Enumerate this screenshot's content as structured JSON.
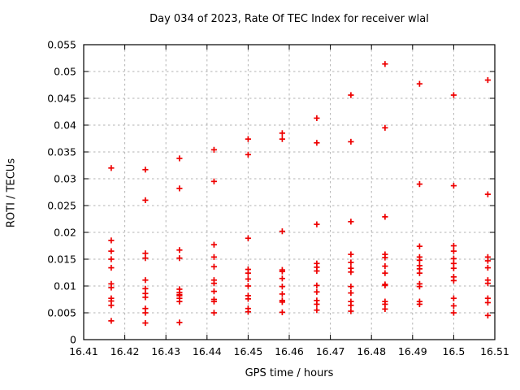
{
  "chart_data": {
    "type": "scatter",
    "title": "Day 034 of 2023, Rate Of TEC Index for receiver wlal",
    "xlabel": "GPS time / hours",
    "ylabel": "ROTI / TECUs",
    "xlim": [
      16.41,
      16.51
    ],
    "ylim": [
      0,
      0.055
    ],
    "grid": true,
    "legend": "none",
    "marker_style": "plus",
    "marker_color": "#ee0000",
    "grid_color": "#b3b3b3",
    "frame_color": "#000000",
    "text_color": "#000000",
    "x_tick_values": [
      16.41,
      16.42,
      16.43,
      16.44,
      16.45,
      16.46,
      16.47,
      16.48,
      16.49,
      16.5,
      16.51
    ],
    "x_tick_labels": [
      "16.41",
      "16.42",
      "16.43",
      "16.44",
      "16.45",
      "16.46",
      "16.47",
      "16.48",
      "16.49",
      "16.5",
      "16.51"
    ],
    "y_tick_values": [
      0,
      0.005,
      0.01,
      0.015,
      0.02,
      0.025,
      0.03,
      0.035,
      0.04,
      0.045,
      0.05,
      0.055
    ],
    "y_tick_labels": [
      "0",
      "0.005",
      "0.01",
      "0.015",
      "0.02",
      "0.025",
      "0.03",
      "0.035",
      "0.04",
      "0.045",
      "0.05",
      "0.055"
    ],
    "series": [
      {
        "name": "ROTI",
        "points": [
          [
            16.4167,
            0.032
          ],
          [
            16.4167,
            0.0185
          ],
          [
            16.4167,
            0.0165
          ],
          [
            16.4167,
            0.015
          ],
          [
            16.4167,
            0.0134
          ],
          [
            16.4167,
            0.0104
          ],
          [
            16.4167,
            0.0097
          ],
          [
            16.4167,
            0.0077
          ],
          [
            16.4167,
            0.0072
          ],
          [
            16.4167,
            0.0064
          ],
          [
            16.4167,
            0.0035
          ],
          [
            16.425,
            0.0317
          ],
          [
            16.425,
            0.026
          ],
          [
            16.425,
            0.0161
          ],
          [
            16.425,
            0.0152
          ],
          [
            16.425,
            0.0111
          ],
          [
            16.425,
            0.0095
          ],
          [
            16.425,
            0.0086
          ],
          [
            16.425,
            0.0079
          ],
          [
            16.425,
            0.0058
          ],
          [
            16.425,
            0.005
          ],
          [
            16.425,
            0.0031
          ],
          [
            16.4333,
            0.0338
          ],
          [
            16.4333,
            0.0282
          ],
          [
            16.4333,
            0.0167
          ],
          [
            16.4333,
            0.0152
          ],
          [
            16.4333,
            0.0094
          ],
          [
            16.4333,
            0.0088
          ],
          [
            16.4333,
            0.0084
          ],
          [
            16.4333,
            0.0082
          ],
          [
            16.4333,
            0.0077
          ],
          [
            16.4333,
            0.0071
          ],
          [
            16.4333,
            0.0032
          ],
          [
            16.4417,
            0.0354
          ],
          [
            16.4417,
            0.0295
          ],
          [
            16.4417,
            0.0177
          ],
          [
            16.4417,
            0.0154
          ],
          [
            16.4417,
            0.0136
          ],
          [
            16.4417,
            0.0111
          ],
          [
            16.4417,
            0.0105
          ],
          [
            16.4417,
            0.009
          ],
          [
            16.4417,
            0.0075
          ],
          [
            16.4417,
            0.0071
          ],
          [
            16.4417,
            0.005
          ],
          [
            16.45,
            0.0374
          ],
          [
            16.45,
            0.0345
          ],
          [
            16.45,
            0.0189
          ],
          [
            16.45,
            0.0131
          ],
          [
            16.45,
            0.0124
          ],
          [
            16.45,
            0.0113
          ],
          [
            16.45,
            0.01
          ],
          [
            16.45,
            0.0082
          ],
          [
            16.45,
            0.0076
          ],
          [
            16.45,
            0.0058
          ],
          [
            16.45,
            0.0052
          ],
          [
            16.4583,
            0.0385
          ],
          [
            16.4583,
            0.0374
          ],
          [
            16.4583,
            0.0202
          ],
          [
            16.4583,
            0.013
          ],
          [
            16.4583,
            0.0127
          ],
          [
            16.4583,
            0.0114
          ],
          [
            16.4583,
            0.0099
          ],
          [
            16.4583,
            0.0085
          ],
          [
            16.4583,
            0.0073
          ],
          [
            16.4583,
            0.007
          ],
          [
            16.4583,
            0.0051
          ],
          [
            16.4667,
            0.0413
          ],
          [
            16.4667,
            0.0367
          ],
          [
            16.4667,
            0.0215
          ],
          [
            16.4667,
            0.0142
          ],
          [
            16.4667,
            0.0135
          ],
          [
            16.4667,
            0.0128
          ],
          [
            16.4667,
            0.0101
          ],
          [
            16.4667,
            0.0089
          ],
          [
            16.4667,
            0.0073
          ],
          [
            16.4667,
            0.0066
          ],
          [
            16.4667,
            0.0055
          ],
          [
            16.475,
            0.0456
          ],
          [
            16.475,
            0.0369
          ],
          [
            16.475,
            0.022
          ],
          [
            16.475,
            0.0159
          ],
          [
            16.475,
            0.0144
          ],
          [
            16.475,
            0.0133
          ],
          [
            16.475,
            0.0126
          ],
          [
            16.475,
            0.0099
          ],
          [
            16.475,
            0.0087
          ],
          [
            16.475,
            0.0071
          ],
          [
            16.475,
            0.0064
          ],
          [
            16.475,
            0.0053
          ],
          [
            16.4833,
            0.0514
          ],
          [
            16.4833,
            0.0395
          ],
          [
            16.4833,
            0.0229
          ],
          [
            16.4833,
            0.0159
          ],
          [
            16.4833,
            0.0153
          ],
          [
            16.4833,
            0.0137
          ],
          [
            16.4833,
            0.0124
          ],
          [
            16.4833,
            0.0103
          ],
          [
            16.4833,
            0.0101
          ],
          [
            16.4833,
            0.0071
          ],
          [
            16.4833,
            0.0066
          ],
          [
            16.4833,
            0.0057
          ],
          [
            16.4917,
            0.0477
          ],
          [
            16.4917,
            0.029
          ],
          [
            16.4917,
            0.0174
          ],
          [
            16.4917,
            0.0154
          ],
          [
            16.4917,
            0.0148
          ],
          [
            16.4917,
            0.0138
          ],
          [
            16.4917,
            0.0132
          ],
          [
            16.4917,
            0.0124
          ],
          [
            16.4917,
            0.0104
          ],
          [
            16.4917,
            0.0099
          ],
          [
            16.4917,
            0.0071
          ],
          [
            16.4917,
            0.0066
          ],
          [
            16.5,
            0.0456
          ],
          [
            16.5,
            0.0287
          ],
          [
            16.5,
            0.0175
          ],
          [
            16.5,
            0.0165
          ],
          [
            16.5,
            0.0151
          ],
          [
            16.5,
            0.0142
          ],
          [
            16.5,
            0.0133
          ],
          [
            16.5,
            0.0117
          ],
          [
            16.5,
            0.011
          ],
          [
            16.5,
            0.0077
          ],
          [
            16.5,
            0.0063
          ],
          [
            16.5,
            0.005
          ],
          [
            16.5083,
            0.0484
          ],
          [
            16.5083,
            0.0271
          ],
          [
            16.5083,
            0.0154
          ],
          [
            16.5083,
            0.0147
          ],
          [
            16.5083,
            0.0134
          ],
          [
            16.5083,
            0.0111
          ],
          [
            16.5083,
            0.0105
          ],
          [
            16.5083,
            0.0077
          ],
          [
            16.5083,
            0.0069
          ],
          [
            16.5083,
            0.0045
          ]
        ]
      }
    ]
  }
}
